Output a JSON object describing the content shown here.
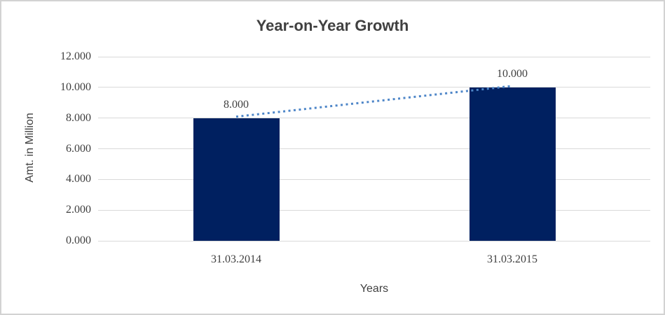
{
  "chart_data": {
    "type": "bar",
    "title": "Year-on-Year Growth",
    "xlabel": "Years",
    "ylabel": "Amt. in Million",
    "categories": [
      "31.03.2014",
      "31.03.2015"
    ],
    "values": [
      8.0,
      10.0
    ],
    "data_labels": [
      "8.000",
      "10.000"
    ],
    "ytick_labels": [
      "0.000",
      "2.000",
      "4.000",
      "6.000",
      "8.000",
      "10.000",
      "12.000"
    ],
    "ylim": [
      0,
      12
    ],
    "grid": true,
    "legend": "none",
    "bar_color": "#002060",
    "trendline": {
      "style": "dotted",
      "color": "#4e86c8"
    },
    "gridline_color": "#d9d9d9",
    "text_color": "#3f3f3f",
    "border_color": "#d2d2d2"
  }
}
